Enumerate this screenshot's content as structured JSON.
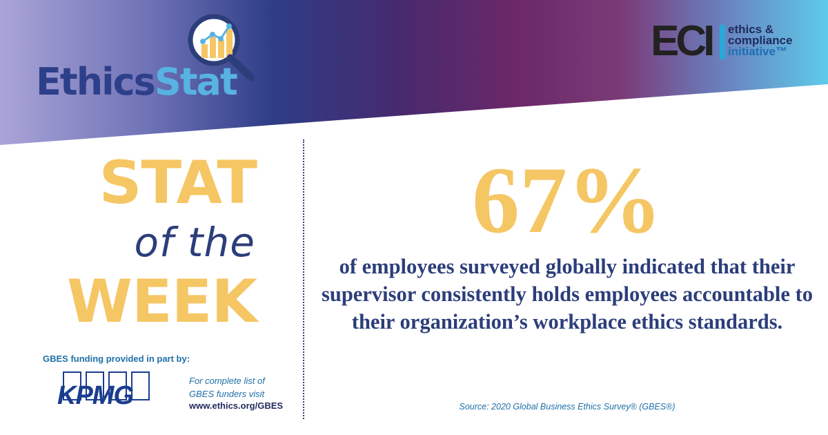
{
  "header": {
    "logo_part1": "Ethics",
    "logo_part2": "Stat",
    "eci_mark": "ECI",
    "eci_lines": [
      "ethics &",
      "compliance",
      "initiative™"
    ]
  },
  "headline": {
    "line1": "STAT",
    "line2": "of the",
    "line3": "WEEK"
  },
  "stat": {
    "value": "67%",
    "description": "of employees surveyed globally indicated that their supervisor consistently holds employees accountable to their organization’s workplace ethics standards.",
    "source": "Source: 2020 Global Business Ethics Survey® (GBES®)"
  },
  "funding": {
    "label": "GBES funding provided in part by:",
    "sponsor": "KPMG",
    "note_line1": "For complete list of",
    "note_line2": "GBES funders visit",
    "url": "www.ethics.org/GBES"
  },
  "colors": {
    "gold": "#f5c664",
    "navy": "#2c3e7a",
    "blue": "#1f6fa8",
    "banner_left": "#a9a3d6",
    "banner_mid": "#6b2a6b",
    "banner_right": "#5ec8e8"
  },
  "icons": [
    "magnifier-chart-icon",
    "kpmg-logo"
  ]
}
